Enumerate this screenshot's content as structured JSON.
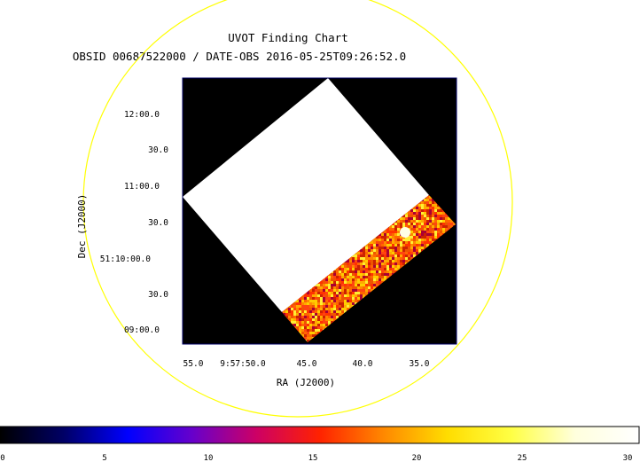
{
  "chart_data": {
    "type": "heatmap",
    "title": "UVOT Finding Chart",
    "subtitle": "OBSID 00687522000 / DATE-OBS 2016-05-25T09:26:52.0",
    "xlabel": "RA (J2000)",
    "ylabel": "Dec (J2000)",
    "x_tick_labels": [
      "55.0",
      "9:57:50.0",
      "45.0",
      "40.0",
      "35.0"
    ],
    "y_tick_labels": [
      "12:00.0",
      "30.0",
      "11:00.0",
      "30.0",
      "51:10:00.0",
      "30.0",
      "09:00.0"
    ],
    "colorbar": {
      "range": [
        0,
        30
      ],
      "tick_labels": [
        "0",
        "5",
        "10",
        "15",
        "20",
        "25",
        "30"
      ],
      "stops": [
        "#000000",
        "#000066",
        "#0000ff",
        "#6600cc",
        "#cc0066",
        "#ff2200",
        "#ff8800",
        "#ffdd00",
        "#ffff44",
        "#ffffdd",
        "#ffffff"
      ]
    },
    "circle_color": "#ffff00",
    "frame_color": "#000066"
  }
}
